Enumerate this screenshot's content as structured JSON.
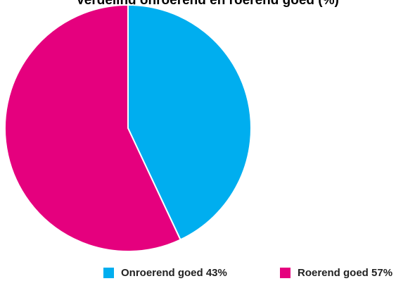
{
  "title": "Verdeling onroerend en roerend goed (%)",
  "chart_data": {
    "type": "pie",
    "categories": [
      "Onroerend goed",
      "Roerend goed"
    ],
    "values": [
      43,
      57
    ],
    "colors": [
      "#00aeef",
      "#e5007e"
    ],
    "legend": [
      {
        "label": "Onroerend goed 43%"
      },
      {
        "label": "Roerend goed 57%"
      }
    ],
    "legend_position": "bottom"
  }
}
